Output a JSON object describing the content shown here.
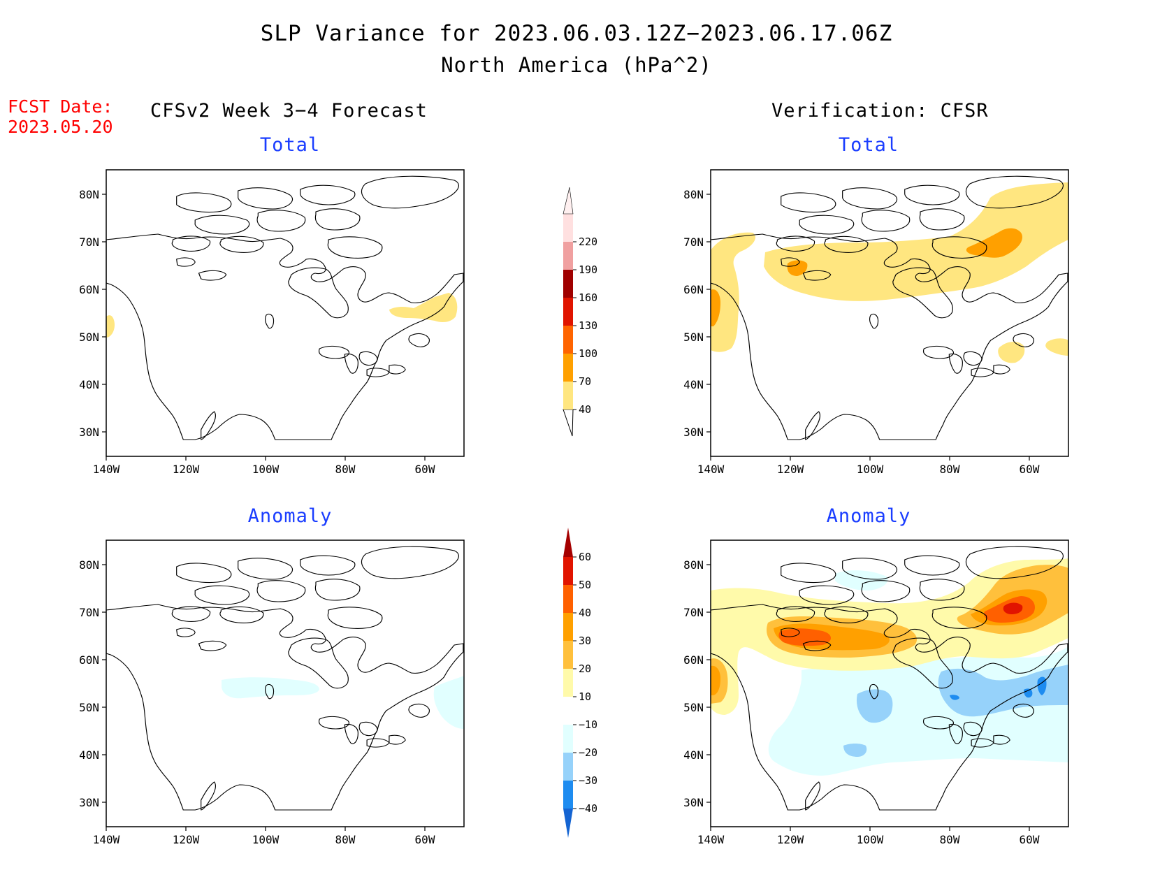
{
  "header": {
    "title": "SLP Variance for 2023.06.03.12Z−2023.06.17.06Z",
    "subtitle": "North America (hPa^2)",
    "fcst_label": "FCST Date:",
    "fcst_date": "2023.05.20",
    "left_column": "CFSv2 Week 3−4 Forecast",
    "right_column": "Verification: CFSR"
  },
  "panels": {
    "tl": {
      "title": "Total"
    },
    "tr": {
      "title": "Total"
    },
    "bl": {
      "title": "Anomaly"
    },
    "br": {
      "title": "Anomaly"
    }
  },
  "axes": {
    "lat_labels": [
      "80N",
      "70N",
      "60N",
      "50N",
      "40N",
      "30N"
    ],
    "lon_labels": [
      "140W",
      "120W",
      "100W",
      "80W",
      "60W"
    ]
  },
  "colorbars": {
    "total": {
      "labels": [
        "40",
        "70",
        "100",
        "130",
        "160",
        "190",
        "220"
      ],
      "colors": [
        "#ffe680",
        "#ffa000",
        "#ff6400",
        "#e01400",
        "#a00000",
        "#f0a0a0",
        "#ffe0e0"
      ]
    },
    "anomaly": {
      "labels": [
        "−40",
        "−30",
        "−20",
        "−10",
        "10",
        "20",
        "30",
        "40",
        "50",
        "60"
      ],
      "colors": [
        "#1464d2",
        "#1e8cf0",
        "#96d2fa",
        "#e1ffff",
        "#ffffff",
        "#fffaaa",
        "#ffc03c",
        "#ffa000",
        "#ff6000",
        "#e11400",
        "#a50000"
      ]
    }
  },
  "color_legend": {
    "yellow": "#ffe680",
    "orange": "#ffa000",
    "red_orange": "#ff6400",
    "red": "#e01400",
    "light_cyan": "#e1ffff",
    "light_blue": "#96d2fa",
    "blue": "#1e8cf0"
  }
}
